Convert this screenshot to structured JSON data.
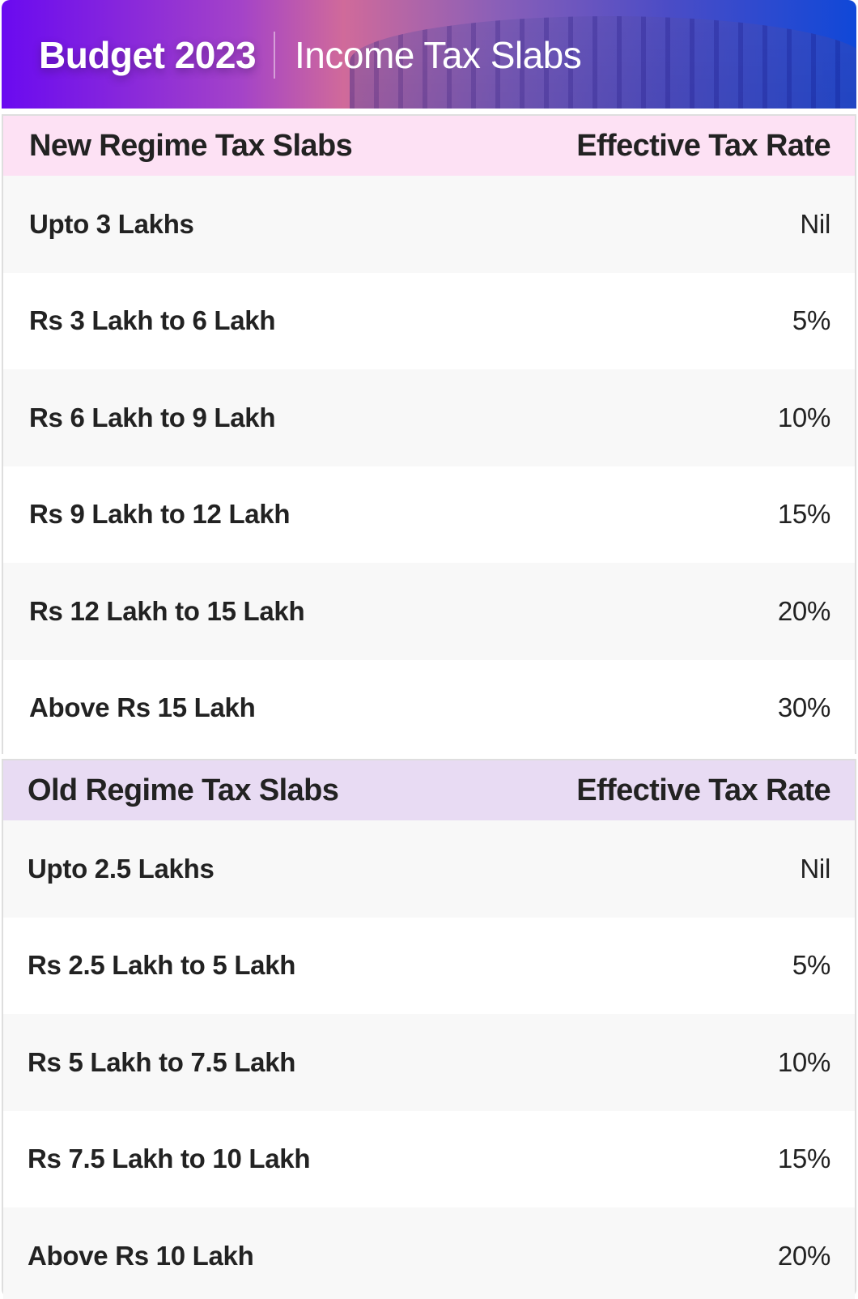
{
  "banner": {
    "title": "Budget 2023",
    "subtitle": "Income Tax Slabs",
    "background_image": "parliament-building-illustration",
    "gradient_colors": [
      "#6a0af0",
      "#d06a9a",
      "#1048d8"
    ]
  },
  "new_regime": {
    "header": {
      "slab_label": "New Regime Tax Slabs",
      "rate_label": "Effective Tax Rate"
    },
    "header_color": "#fde1f4",
    "rows": [
      {
        "slab": "Upto 3 Lakhs",
        "rate": "Nil"
      },
      {
        "slab": "Rs 3 Lakh to 6 Lakh",
        "rate": "5%"
      },
      {
        "slab": "Rs 6 Lakh to 9 Lakh",
        "rate": "10%"
      },
      {
        "slab": "Rs 9 Lakh to 12 Lakh",
        "rate": "15%"
      },
      {
        "slab": "Rs 12 Lakh to 15 Lakh",
        "rate": "20%"
      },
      {
        "slab": "Above Rs 15 Lakh",
        "rate": "30%"
      }
    ]
  },
  "old_regime": {
    "header": {
      "slab_label": "Old Regime Tax Slabs",
      "rate_label": "Effective Tax Rate"
    },
    "header_color": "#e8dbf3",
    "rows": [
      {
        "slab": "Upto 2.5 Lakhs",
        "rate": "Nil"
      },
      {
        "slab": "Rs 2.5 Lakh to 5 Lakh",
        "rate": "5%"
      },
      {
        "slab": "Rs 5 Lakh to 7.5 Lakh",
        "rate": "10%"
      },
      {
        "slab": "Rs 7.5 Lakh to 10 Lakh",
        "rate": "15%"
      },
      {
        "slab": "Above Rs 10 Lakh",
        "rate": "20%"
      }
    ]
  }
}
